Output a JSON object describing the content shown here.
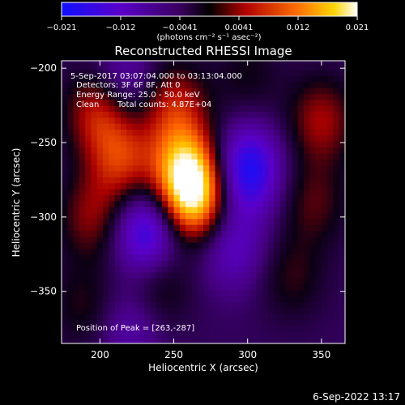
{
  "colorbar": {
    "ticks": [
      "−0.021",
      "−0.012",
      "−0.0041",
      "0.0041",
      "0.012",
      "0.021"
    ],
    "unit": "(photons cm⁻² s⁻¹ asec⁻²)",
    "min": -0.021,
    "max": 0.021
  },
  "chart_data": {
    "type": "heatmap",
    "title": "Reconstructed RHESSI Image",
    "xlabel": "Heliocentric X (arcsec)",
    "ylabel": "Heliocentric Y (arcsec)",
    "xlim": [
      174,
      366
    ],
    "ylim": [
      -385,
      -195
    ],
    "x_ticks": [
      200,
      250,
      300,
      350
    ],
    "y_ticks": [
      -200,
      -250,
      -300,
      -350
    ],
    "x_tick_labels": [
      "200",
      "250",
      "300",
      "350"
    ],
    "y_tick_labels": [
      "−200",
      "−250",
      "−300",
      "−350"
    ],
    "grid": false,
    "colormap": "hot-purple",
    "peak": [
      263,
      -287
    ],
    "sources": [
      {
        "x": 263,
        "y": -287,
        "value": 0.021
      },
      {
        "x": 258,
        "y": -265,
        "value": 0.015
      },
      {
        "x": 250,
        "y": -225,
        "value": 0.01
      },
      {
        "x": 200,
        "y": -228,
        "value": 0.012
      },
      {
        "x": 215,
        "y": -262,
        "value": 0.011
      },
      {
        "x": 195,
        "y": -300,
        "value": 0.008
      },
      {
        "x": 350,
        "y": -235,
        "value": 0.009
      },
      {
        "x": 345,
        "y": -290,
        "value": 0.006
      },
      {
        "x": 330,
        "y": -340,
        "value": 0.005
      },
      {
        "x": 240,
        "y": -345,
        "value": 0.006
      },
      {
        "x": 190,
        "y": -360,
        "value": 0.005
      },
      {
        "x": 300,
        "y": -205,
        "value": 0.004
      },
      {
        "x": 300,
        "y": -268,
        "value": -0.016
      },
      {
        "x": 232,
        "y": -310,
        "value": -0.015
      },
      {
        "x": 215,
        "y": -210,
        "value": -0.008
      },
      {
        "x": 290,
        "y": -320,
        "value": -0.008
      },
      {
        "x": 220,
        "y": -375,
        "value": -0.006
      }
    ]
  },
  "annotations": {
    "time_range": "5-Sep-2017 03:07:04.000 to 03:13:04.000",
    "detectors": "Detectors: 3F 6F 8F, Att 0",
    "energy_range": "Energy Range: 25.0 - 50.0 keV",
    "clean_label": "Clean",
    "total_counts": "Total counts: 4.87E+04",
    "peak_position": "Position of Peak = [263,-287]"
  },
  "footer": {
    "timestamp": "6-Sep-2022 13:17"
  }
}
